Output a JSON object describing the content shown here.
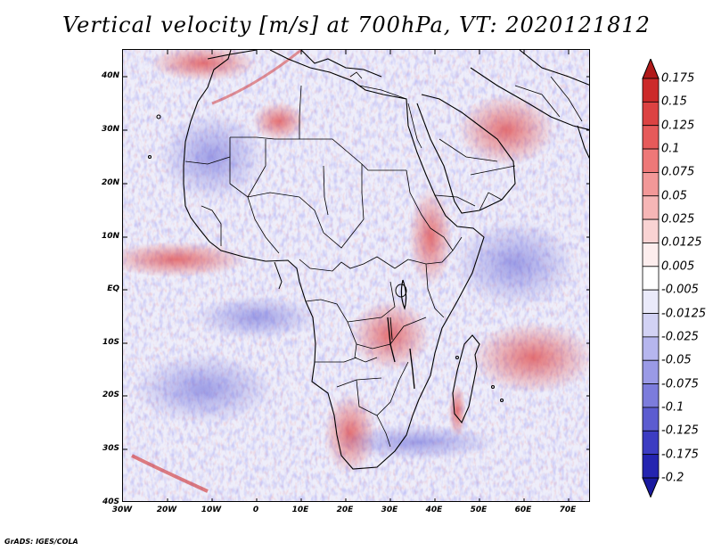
{
  "title": "Vertical velocity [m/s] at 700hPa, VT: 2020121812",
  "credit": "GrADS: IGES/COLA",
  "map": {
    "variable": "Vertical velocity",
    "units": "m/s",
    "level": "700hPa",
    "valid_time": "2020121812",
    "lon_range": [
      -30,
      75
    ],
    "lat_range": [
      -40,
      45
    ],
    "y_ticks": [
      {
        "value": 40,
        "label": "40N"
      },
      {
        "value": 30,
        "label": "30N"
      },
      {
        "value": 20,
        "label": "20N"
      },
      {
        "value": 10,
        "label": "10N"
      },
      {
        "value": 0,
        "label": "EQ"
      },
      {
        "value": -10,
        "label": "10S"
      },
      {
        "value": -20,
        "label": "20S"
      },
      {
        "value": -30,
        "label": "30S"
      },
      {
        "value": -40,
        "label": "40S"
      }
    ],
    "x_ticks": [
      {
        "value": -30,
        "label": "30W"
      },
      {
        "value": -20,
        "label": "20W"
      },
      {
        "value": -10,
        "label": "10W"
      },
      {
        "value": 0,
        "label": "0"
      },
      {
        "value": 10,
        "label": "10E"
      },
      {
        "value": 20,
        "label": "20E"
      },
      {
        "value": 30,
        "label": "30E"
      },
      {
        "value": 40,
        "label": "40E"
      },
      {
        "value": 50,
        "label": "50E"
      },
      {
        "value": 60,
        "label": "60E"
      },
      {
        "value": 70,
        "label": "70E"
      }
    ]
  },
  "colorbar": {
    "labels": [
      "0.175",
      "0.15",
      "0.125",
      "0.1",
      "0.075",
      "0.05",
      "0.025",
      "0.0125",
      "0.005",
      "-0.005",
      "-0.0125",
      "-0.025",
      "-0.05",
      "-0.075",
      "-0.1",
      "-0.125",
      "-0.175",
      "-0.2"
    ],
    "colors": [
      "#b01a1a",
      "#cc2a2a",
      "#dc4242",
      "#e65a5a",
      "#ee7878",
      "#f29898",
      "#f6b6b6",
      "#f9d3d3",
      "#fdeeee",
      "#ffffff",
      "#eaeafa",
      "#d2d2f4",
      "#b6b6ee",
      "#9a9ae6",
      "#7c7cdc",
      "#5c5cd0",
      "#3c3cc2",
      "#2424b0",
      "#1a1aa0"
    ]
  }
}
